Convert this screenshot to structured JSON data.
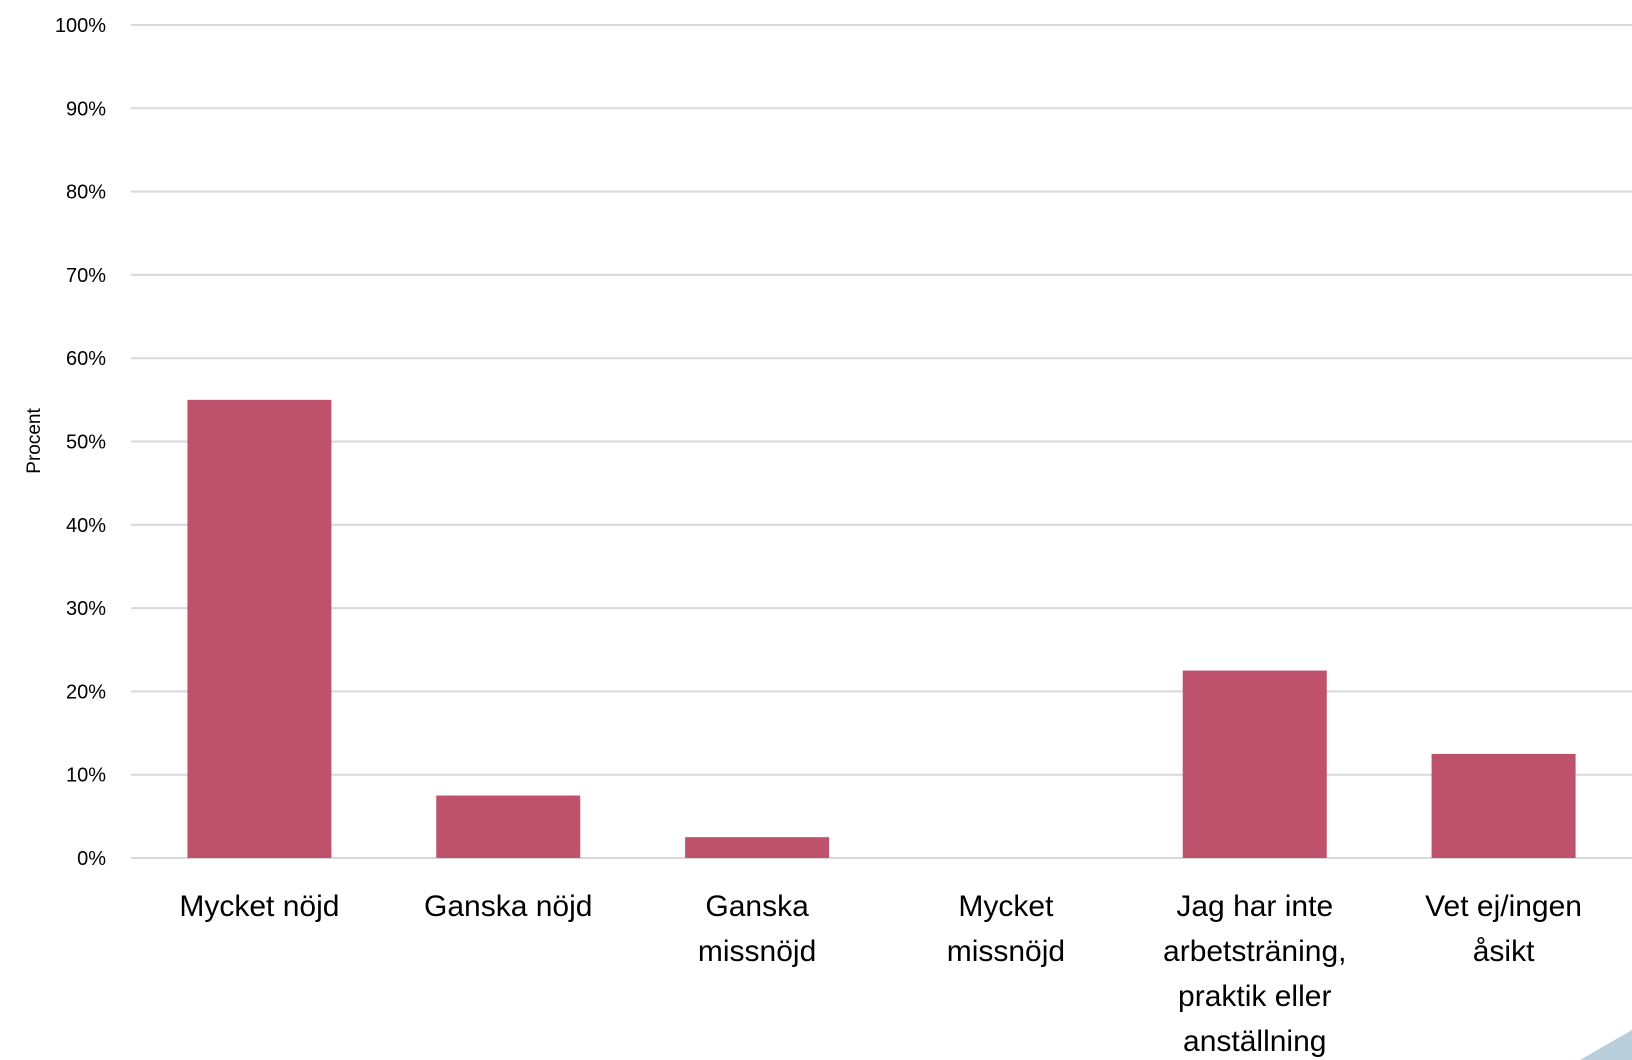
{
  "chart_data": {
    "type": "bar",
    "categories": [
      [
        "Mycket nöjd"
      ],
      [
        "Ganska nöjd"
      ],
      [
        "Ganska",
        "missnöjd"
      ],
      [
        "Mycket",
        "missnöjd"
      ],
      [
        "Jag har inte",
        "arbetsträning,",
        "praktik eller",
        "anställning"
      ],
      [
        "Vet ej/ingen",
        "åsikt"
      ]
    ],
    "values": [
      55,
      7.5,
      2.5,
      0,
      22.5,
      12.5
    ],
    "ylabel": "Procent",
    "xlabel": "",
    "ylim": [
      0,
      100
    ],
    "yticks": [
      "0%",
      "10%",
      "20%",
      "30%",
      "40%",
      "50%",
      "60%",
      "70%",
      "80%",
      "90%",
      "100%"
    ],
    "grid": true,
    "bar_color": "#be526d",
    "grid_color": "#d9d9d9"
  }
}
